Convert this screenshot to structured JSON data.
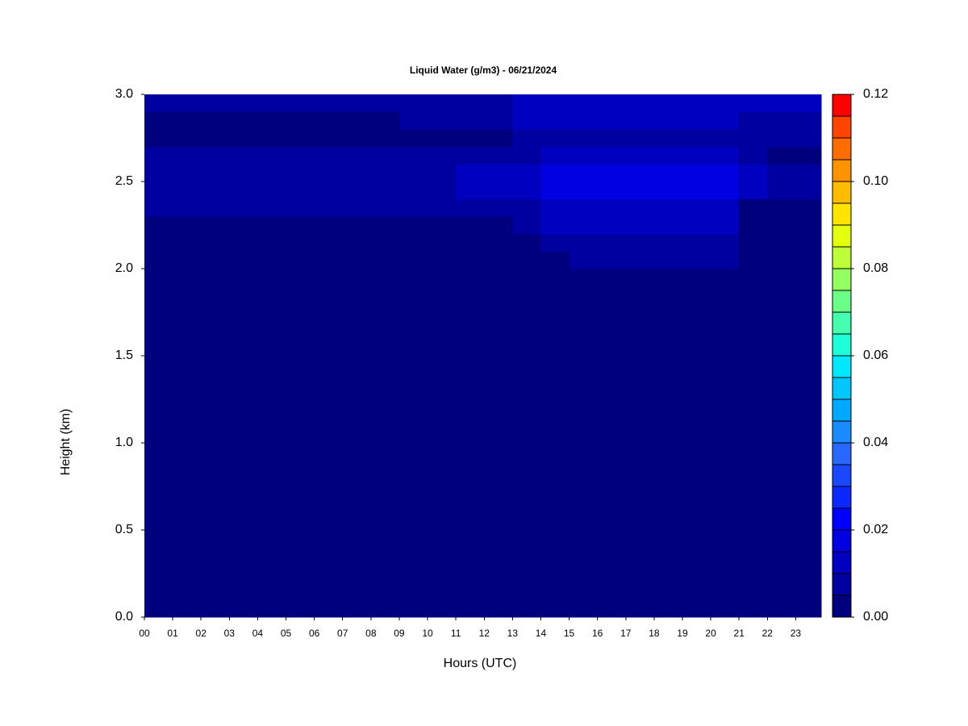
{
  "chart_data": {
    "type": "heatmap",
    "title": "Liquid Water (g/m3) - 06/21/2024",
    "x_label": "Hours (UTC)",
    "y_label": "Height (km)",
    "xlim": [
      0,
      23.9
    ],
    "ylim": [
      0,
      3
    ],
    "xticks": [
      {
        "value": 0,
        "label": "00"
      },
      {
        "value": 1,
        "label": "01"
      },
      {
        "value": 2,
        "label": "02"
      },
      {
        "value": 3,
        "label": "03"
      },
      {
        "value": 4,
        "label": "04"
      },
      {
        "value": 5,
        "label": "05"
      },
      {
        "value": 6,
        "label": "06"
      },
      {
        "value": 7,
        "label": "07"
      },
      {
        "value": 8,
        "label": "08"
      },
      {
        "value": 9,
        "label": "09"
      },
      {
        "value": 10,
        "label": "10"
      },
      {
        "value": 11,
        "label": "11"
      },
      {
        "value": 12,
        "label": "12"
      },
      {
        "value": 13,
        "label": "13"
      },
      {
        "value": 14,
        "label": "14"
      },
      {
        "value": 15,
        "label": "15"
      },
      {
        "value": 16,
        "label": "16"
      },
      {
        "value": 17,
        "label": "17"
      },
      {
        "value": 18,
        "label": "18"
      },
      {
        "value": 19,
        "label": "19"
      },
      {
        "value": 20,
        "label": "20"
      },
      {
        "value": 21,
        "label": "21"
      },
      {
        "value": 22,
        "label": "22"
      },
      {
        "value": 23,
        "label": "23"
      }
    ],
    "yticks": [
      {
        "value": 0,
        "label": "0.0"
      },
      {
        "value": 0.5,
        "label": "0.5"
      },
      {
        "value": 1,
        "label": "1.0"
      },
      {
        "value": 1.5,
        "label": "1.5"
      },
      {
        "value": 2,
        "label": "2.0"
      },
      {
        "value": 2.5,
        "label": "2.5"
      },
      {
        "value": 3,
        "label": "3.0"
      }
    ],
    "x": [
      0,
      1,
      2,
      3,
      4,
      5,
      6,
      7,
      8,
      9,
      10,
      11,
      12,
      13,
      14,
      15,
      16,
      17,
      18,
      19,
      20,
      21,
      22,
      23
    ],
    "y": [
      0,
      2.0,
      2.1,
      2.2,
      2.3,
      2.4,
      2.5,
      2.6,
      2.7,
      2.8,
      2.9
    ],
    "z": [
      [
        0,
        0,
        0,
        0,
        0,
        0,
        0,
        0,
        0,
        0,
        0,
        0,
        0,
        0,
        0,
        0,
        0,
        0,
        0,
        0,
        0,
        0,
        0,
        0
      ],
      [
        0,
        0,
        0,
        0,
        0,
        0,
        0,
        0,
        0,
        0,
        0,
        0,
        0,
        0,
        0,
        0.006,
        0.006,
        0.006,
        0.006,
        0.006,
        0.006,
        0,
        0,
        0
      ],
      [
        0,
        0,
        0,
        0,
        0,
        0,
        0,
        0,
        0,
        0,
        0,
        0,
        0,
        0,
        0.008,
        0.008,
        0.008,
        0.008,
        0.008,
        0.008,
        0.008,
        0,
        0,
        0
      ],
      [
        0,
        0,
        0,
        0,
        0,
        0,
        0,
        0,
        0,
        0,
        0,
        0,
        0,
        0.006,
        0.011,
        0.011,
        0.011,
        0.011,
        0.011,
        0.011,
        0.011,
        0.004,
        0.004,
        0
      ],
      [
        0.006,
        0.006,
        0.006,
        0.006,
        0.006,
        0.006,
        0.006,
        0.006,
        0.006,
        0.006,
        0.006,
        0.006,
        0.008,
        0.008,
        0.014,
        0.014,
        0.014,
        0.014,
        0.014,
        0.014,
        0.014,
        0.004,
        0.004,
        0.004
      ],
      [
        0.009,
        0.009,
        0.009,
        0.009,
        0.009,
        0.009,
        0.009,
        0.009,
        0.009,
        0.009,
        0.009,
        0.011,
        0.011,
        0.011,
        0.018,
        0.018,
        0.018,
        0.018,
        0.018,
        0.018,
        0.018,
        0.012,
        0.006,
        0.008
      ],
      [
        0.008,
        0.008,
        0.008,
        0.008,
        0.008,
        0.008,
        0.008,
        0.008,
        0.008,
        0.008,
        0.008,
        0.01,
        0.01,
        0.01,
        0.015,
        0.018,
        0.018,
        0.018,
        0.018,
        0.018,
        0.018,
        0.01,
        0.006,
        0.008
      ],
      [
        0.006,
        0.006,
        0.006,
        0.006,
        0.006,
        0.006,
        0.006,
        0.006,
        0.006,
        0.006,
        0.006,
        0.009,
        0.009,
        0.009,
        0.013,
        0.013,
        0.013,
        0.013,
        0.013,
        0.013,
        0.013,
        0.009,
        0.004,
        0.004
      ],
      [
        0.002,
        0.002,
        0.002,
        0.002,
        0.002,
        0.002,
        0.002,
        0.002,
        0.002,
        0.002,
        0.002,
        0.002,
        0.002,
        0.009,
        0.009,
        0.009,
        0.009,
        0.009,
        0.009,
        0.009,
        0.009,
        0.005,
        0.005,
        0.005
      ],
      [
        0.003,
        0.003,
        0.003,
        0.003,
        0.003,
        0.003,
        0.003,
        0.003,
        0.003,
        0.006,
        0.006,
        0.006,
        0.006,
        0.011,
        0.011,
        0.011,
        0.011,
        0.011,
        0.011,
        0.011,
        0.011,
        0.009,
        0.009,
        0.009
      ],
      [
        0.006,
        0.006,
        0.006,
        0.006,
        0.006,
        0.006,
        0.006,
        0.006,
        0.006,
        0.008,
        0.008,
        0.008,
        0.008,
        0.013,
        0.013,
        0.013,
        0.013,
        0.013,
        0.013,
        0.013,
        0.013,
        0.012,
        0.012,
        0.012
      ]
    ],
    "colorbar": {
      "levels": [
        0,
        0.005,
        0.01,
        0.015,
        0.02,
        0.025,
        0.03,
        0.035,
        0.04,
        0.045,
        0.05,
        0.055,
        0.06,
        0.065,
        0.07,
        0.075,
        0.08,
        0.085,
        0.09,
        0.095,
        0.1,
        0.105,
        0.11,
        0.115,
        0.12
      ],
      "colors": [
        "#00007f",
        "#0000a0",
        "#0000c0",
        "#0000e0",
        "#0000ff",
        "#0a28ff",
        "#1a48ff",
        "#2868ff",
        "#1a8cff",
        "#00a8ff",
        "#00c8ff",
        "#00e8ff",
        "#1cffd8",
        "#44ffb0",
        "#6cff88",
        "#94ff60",
        "#bcff38",
        "#e4ff10",
        "#ffe400",
        "#ffbc00",
        "#ff9400",
        "#ff6c00",
        "#ff4400",
        "#ff0000"
      ],
      "ticks": [
        {
          "value": 0,
          "label": "0.00"
        },
        {
          "value": 0.02,
          "label": "0.02"
        },
        {
          "value": 0.04,
          "label": "0.04"
        },
        {
          "value": 0.06,
          "label": "0.06"
        },
        {
          "value": 0.08,
          "label": "0.08"
        },
        {
          "value": 0.1,
          "label": "0.10"
        },
        {
          "value": 0.12,
          "label": "0.12"
        }
      ]
    }
  }
}
